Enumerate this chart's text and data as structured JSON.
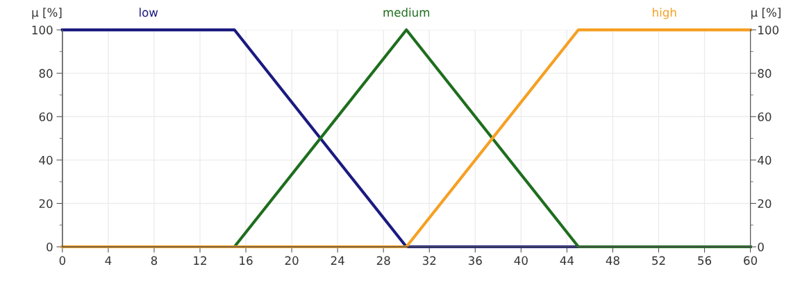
{
  "chart_data": {
    "type": "line",
    "ylabel": "μ [%]",
    "y2label": "μ [%]",
    "series": [
      {
        "name": "low",
        "color": "#1a1a80",
        "x": [
          0,
          15,
          30,
          60
        ],
        "values": [
          100,
          100,
          0,
          0
        ]
      },
      {
        "name": "medium",
        "color": "#1e6e1e",
        "x": [
          0,
          15,
          30,
          45,
          60
        ],
        "values": [
          0,
          0,
          100,
          0,
          0
        ]
      },
      {
        "name": "high",
        "color": "#f5a023",
        "x": [
          0,
          30,
          45,
          60
        ],
        "values": [
          0,
          0,
          100,
          100
        ]
      }
    ],
    "xlim": [
      0,
      60
    ],
    "xticks": [
      0,
      4,
      8,
      12,
      16,
      20,
      24,
      28,
      32,
      36,
      40,
      44,
      48,
      52,
      56,
      60
    ],
    "ylim": [
      0,
      100
    ],
    "yticks": [
      0,
      20,
      40,
      60,
      80,
      100
    ],
    "y2lim": [
      0,
      100
    ],
    "y2ticks": [
      0,
      20,
      40,
      60,
      80,
      100
    ],
    "grid": true,
    "marker": "none",
    "line_style": "solid",
    "legend": false
  }
}
